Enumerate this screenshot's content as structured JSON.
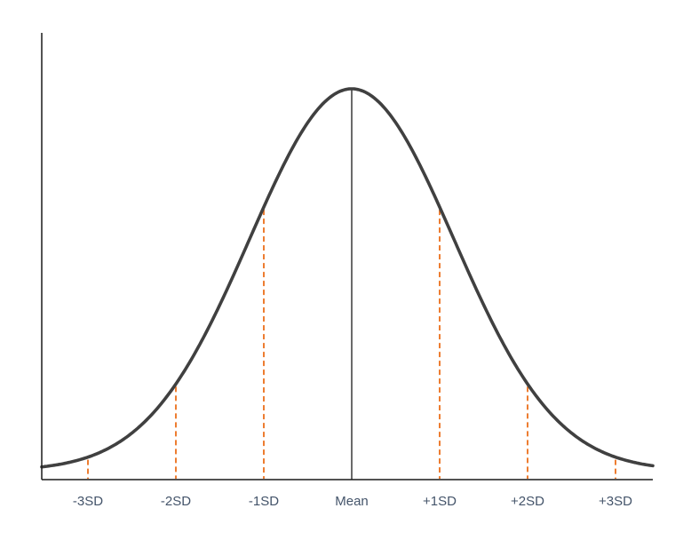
{
  "chart_data": {
    "type": "line",
    "subtype": "normal-distribution-bell-curve",
    "title": "",
    "xlabel": "",
    "ylabel": "",
    "categories": [
      "-3SD",
      "-2SD",
      "-1SD",
      "Mean",
      "+1SD",
      "+2SD",
      "+3SD"
    ],
    "markers": [
      {
        "label": "-3SD",
        "sd": -3,
        "line_style": "dashed"
      },
      {
        "label": "-2SD",
        "sd": -2,
        "line_style": "dashed"
      },
      {
        "label": "-1SD",
        "sd": -1,
        "line_style": "dashed"
      },
      {
        "label": "Mean",
        "sd": 0,
        "line_style": "solid"
      },
      {
        "label": "+1SD",
        "sd": 1,
        "line_style": "dashed"
      },
      {
        "label": "+2SD",
        "sd": 2,
        "line_style": "dashed"
      },
      {
        "label": "+3SD",
        "sd": 3,
        "line_style": "dashed"
      }
    ],
    "curve": {
      "distribution": "normal",
      "mean": 0,
      "sd": 1,
      "peak_relative_height": 1.0
    },
    "x_range_sd": [
      -3.53,
      3.42
    ],
    "axes": {
      "x_axis": true,
      "y_axis": true,
      "grid": false,
      "y_tick_labels": []
    },
    "legend": "none",
    "colors": {
      "curve": "#404040",
      "sd_marker": "#ED7D31",
      "mean_line": "#1a1a1a",
      "axis": "#1a1a1a",
      "tick_label": "#44546A",
      "background": "#ffffff"
    }
  }
}
